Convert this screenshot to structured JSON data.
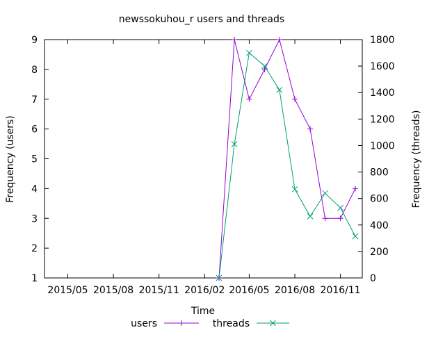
{
  "chart_data": {
    "type": "line",
    "title": "newssokuhou_r users and threads",
    "xlabel": "Time",
    "ylabel": "Frequency (users)",
    "y2label": "Frequency (threads)",
    "x_tick_labels": [
      "2015/05",
      "2015/08",
      "2015/11",
      "2016/02",
      "2016/05",
      "2016/08",
      "2016/11"
    ],
    "x_tick_dates": [
      "2015-05-01",
      "2015-08-01",
      "2015-11-01",
      "2016-02-01",
      "2016-05-01",
      "2016-08-01",
      "2016-11-01"
    ],
    "x_range": [
      "2015-03-15",
      "2016-12-15"
    ],
    "y_range": [
      1,
      9
    ],
    "y_ticks": [
      1,
      2,
      3,
      4,
      5,
      6,
      7,
      8,
      9
    ],
    "y2_range": [
      0,
      1800
    ],
    "y2_ticks": [
      0,
      200,
      400,
      600,
      800,
      1000,
      1200,
      1400,
      1600,
      1800
    ],
    "grid": false,
    "legend_position": "bottom",
    "series": [
      {
        "name": "users",
        "axis": "left",
        "color": "#9400d3",
        "marker": "plus",
        "x": [
          "2016-03-01",
          "2016-04-01",
          "2016-05-01",
          "2016-06-01",
          "2016-07-01",
          "2016-08-01",
          "2016-09-01",
          "2016-10-01",
          "2016-11-01",
          "2016-12-01"
        ],
        "values": [
          1,
          9,
          7,
          8,
          9,
          7,
          6,
          3,
          3,
          4
        ]
      },
      {
        "name": "threads",
        "axis": "right",
        "color": "#009e73",
        "marker": "cross",
        "x": [
          "2016-03-01",
          "2016-04-01",
          "2016-05-01",
          "2016-06-01",
          "2016-07-01",
          "2016-08-01",
          "2016-09-01",
          "2016-10-01",
          "2016-11-01",
          "2016-12-01"
        ],
        "values": [
          0,
          1010,
          1700,
          1600,
          1420,
          670,
          465,
          640,
          530,
          315
        ]
      }
    ]
  }
}
